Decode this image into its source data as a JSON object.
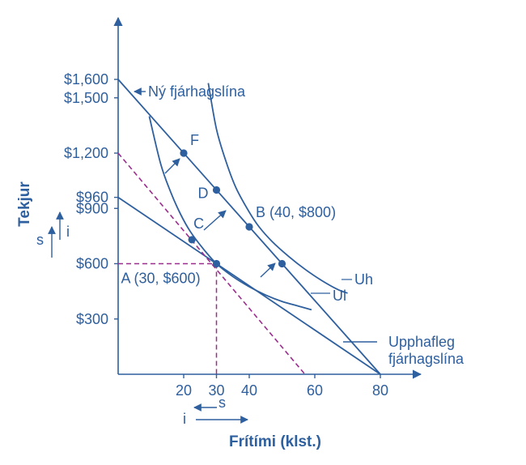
{
  "chart_data": {
    "type": "line",
    "xlabel": "Frítími (klst.)",
    "ylabel": "Tekjur",
    "x_ticks": [
      {
        "value": 20,
        "label": "20"
      },
      {
        "value": 30,
        "label": "30"
      },
      {
        "value": 40,
        "label": "40"
      },
      {
        "value": 60,
        "label": "60"
      },
      {
        "value": 80,
        "label": "80"
      }
    ],
    "y_ticks": [
      {
        "value": 300,
        "label": "$300"
      },
      {
        "value": 600,
        "label": "$600"
      },
      {
        "value": 900,
        "label": "$900"
      },
      {
        "value": 960,
        "label": "$960"
      },
      {
        "value": 1200,
        "label": "$1,200"
      },
      {
        "value": 1500,
        "label": "$1,500"
      },
      {
        "value": 1600,
        "label": "$1,600"
      }
    ],
    "xlim": [
      0,
      80
    ],
    "ylim": [
      0,
      1600
    ],
    "lines": [
      {
        "id": "new",
        "x": [
          0,
          80
        ],
        "y": [
          1600,
          0
        ],
        "label": "Ný fjárhagslína"
      },
      {
        "id": "orig",
        "x": [
          0,
          80
        ],
        "y": [
          960,
          0
        ],
        "label": "Upphafleg fjárhagslína"
      },
      {
        "id": "parallel",
        "x": [
          0,
          57
        ],
        "y": [
          1200,
          0
        ],
        "dashed": true
      }
    ],
    "curves": [
      {
        "id": "ul",
        "label": "Ul",
        "x": [
          9.5,
          13,
          16,
          19,
          22,
          26,
          30,
          35,
          40,
          45,
          50,
          55,
          59
        ],
        "y": [
          1400,
          1140,
          990,
          870,
          775,
          680,
          600,
          530,
          475,
          430,
          395,
          370,
          350
        ]
      },
      {
        "id": "uh",
        "label": "Uh",
        "x": [
          27.5,
          30,
          33,
          36,
          40,
          43,
          47,
          52,
          57,
          62,
          67,
          70
        ],
        "y": [
          1580,
          1330,
          1150,
          1010,
          880,
          800,
          720,
          640,
          570,
          510,
          460,
          440
        ]
      }
    ],
    "points": [
      {
        "id": "A",
        "x": 30,
        "y": 600,
        "label": "A (30, $600)"
      },
      {
        "id": "B",
        "x": 40,
        "y": 800,
        "label": "B (40, $800)"
      },
      {
        "id": "C",
        "x": 22.5,
        "y": 730,
        "label": "C"
      },
      {
        "id": "D",
        "x": 30,
        "y": 1000,
        "label": "D"
      },
      {
        "id": "F",
        "x": 20,
        "y": 1200,
        "label": "F"
      },
      {
        "id": "E",
        "x": 50,
        "y": 600,
        "label": ""
      }
    ],
    "guides": [
      {
        "x": [
          0,
          30
        ],
        "y": [
          600,
          600
        ]
      },
      {
        "x": [
          30,
          30
        ],
        "y": [
          600,
          0
        ]
      }
    ],
    "effect_labels": {
      "s": "s",
      "i": "i"
    },
    "colors": {
      "line": "#2e5f9e",
      "dash": "#9b2d8e",
      "text": "#2e5f9e"
    }
  }
}
